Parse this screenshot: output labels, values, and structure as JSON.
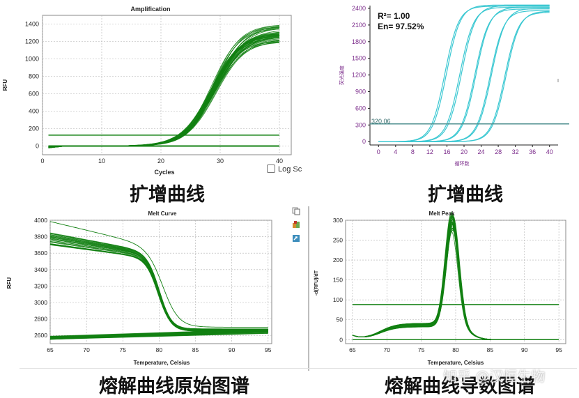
{
  "captions": {
    "top_left": "扩增曲线",
    "top_right": "扩增曲线",
    "bottom_left": "熔解曲线原始图谱",
    "bottom_right": "熔解曲线导数图谱"
  },
  "log_scale_label": "Log Sc",
  "watermark": "知乎 @汉恒生物",
  "colors": {
    "green": "#128012",
    "cyan": "#3cc8d2",
    "threshold_teal": "#4f8f8f",
    "axis_purple": "#7a2a8a"
  },
  "chart_data": [
    {
      "id": "amplification",
      "type": "line",
      "title": "Amplification",
      "xlabel": "Cycles",
      "ylabel": "RFU",
      "xlim": [
        0,
        42
      ],
      "ylim": [
        -100,
        1500
      ],
      "x_ticks": [
        "0",
        "10",
        "20",
        "30",
        "40"
      ],
      "y_ticks": [
        "0",
        "200",
        "400",
        "600",
        "800",
        "1000",
        "1200",
        "1400"
      ],
      "grid": true,
      "threshold": 125,
      "curve_count": 40,
      "curve_midpoint_range": [
        28.4,
        29.4
      ],
      "plateau_range": [
        1190,
        1400
      ],
      "x_range": [
        1,
        40
      ]
    },
    {
      "id": "standard_amplification",
      "type": "line",
      "xlabel": "循环数",
      "ylabel": "荧光强度",
      "xlim": [
        -2,
        42
      ],
      "ylim": [
        -60,
        2450
      ],
      "x_ticks": [
        "0",
        "4",
        "8",
        "12",
        "16",
        "20",
        "24",
        "28",
        "32",
        "36",
        "40"
      ],
      "y_ticks": [
        "0",
        "300",
        "600",
        "900",
        "1200",
        "1500",
        "1800",
        "2100",
        "2400"
      ],
      "threshold": 320.06,
      "threshold_label": "320.06",
      "annotations": [
        "R²= 1.00",
        "En= 97.52%"
      ],
      "curve_midpoints": [
        15.5,
        15.9,
        19,
        19.4,
        22.5,
        22.8,
        26.1,
        26.4,
        29.5,
        29.8
      ],
      "curve_plateaus": [
        2440,
        2460,
        2420,
        2450,
        2390,
        2420,
        2360,
        2400,
        2330,
        2350
      ],
      "x_range": [
        0,
        40
      ]
    },
    {
      "id": "melt_curve",
      "type": "line",
      "title": "Melt Curve",
      "xlabel": "Temperature, Celsius",
      "ylabel": "RFU",
      "xlim": [
        65,
        95.5
      ],
      "ylim": [
        2500,
        4000
      ],
      "x_ticks": [
        "65",
        "70",
        "75",
        "80",
        "85",
        "90",
        "95"
      ],
      "y_ticks": [
        "2600",
        "2800",
        "3000",
        "3200",
        "3400",
        "3600",
        "3800",
        "4000"
      ],
      "grid": true,
      "curve_count": 30,
      "start_rfu_range": [
        3690,
        3860
      ],
      "outlier_start_rfu": 3985,
      "transition_temperature": 80,
      "end_rfu_range": [
        2650,
        2680
      ],
      "baseline_rfu_range": [
        2550,
        2660
      ]
    },
    {
      "id": "melt_peak",
      "type": "line",
      "title": "Melt Peak",
      "xlabel": "Temperature, Celsius",
      "ylabel": "-d(RFU)/dT",
      "xlim": [
        64,
        96
      ],
      "ylim": [
        -10,
        300
      ],
      "x_ticks": [
        "65",
        "70",
        "75",
        "80",
        "85",
        "90",
        "95"
      ],
      "y_ticks": [
        "0",
        "50",
        "100",
        "150",
        "200",
        "250",
        "300"
      ],
      "grid": true,
      "threshold": 88,
      "curve_count": 30,
      "peak_temperature": 79.5,
      "peak_height_range": [
        240,
        282
      ]
    }
  ]
}
